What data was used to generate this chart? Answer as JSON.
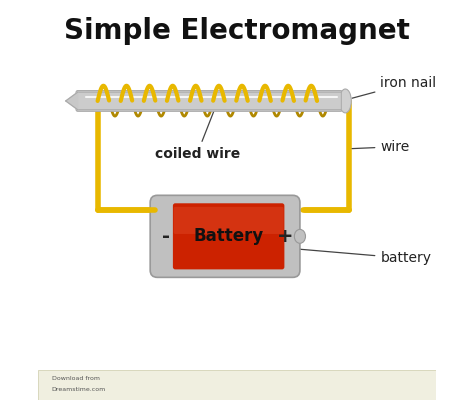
{
  "title": "Simple Electromagnet",
  "title_fontsize": 20,
  "title_fontweight": "bold",
  "bg_color": "#ffffff",
  "wire_color": "#E8B800",
  "wire_linewidth": 3,
  "wire_linewidth_back": 2,
  "wire_color_back": "#b08800",
  "nail_color_body": "#c8c8c8",
  "nail_color_highlight": "#e8e8e8",
  "nail_color_shadow": "#909090",
  "battery_body_color": "#c0c0c0",
  "battery_red_color": "#cc2200",
  "battery_text": "Battery",
  "battery_text_color": "#111111",
  "label_iron_nail": "iron nail",
  "label_coiled_wire": "coiled wire",
  "label_wire": "wire",
  "label_battery": "battery",
  "label_fontsize": 10,
  "minus_symbol": "-",
  "plus_symbol": "+"
}
